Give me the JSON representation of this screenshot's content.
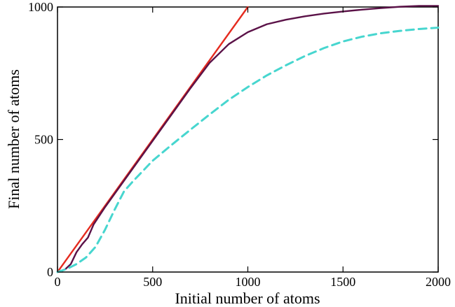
{
  "chart_data": {
    "type": "line",
    "xlabel": "Initial number of atoms",
    "ylabel": "Final number of atoms",
    "xlim": [
      0,
      2000
    ],
    "ylim": [
      0,
      1000
    ],
    "x_ticks": [
      0,
      500,
      1000,
      1500,
      2000
    ],
    "y_ticks": [
      0,
      500,
      1000
    ],
    "x_tick_labels": [
      "0",
      "500",
      "1000",
      "1500",
      "2000"
    ],
    "y_tick_labels": [
      "0",
      "500",
      "1000"
    ],
    "grid": false,
    "series": [
      {
        "color": "#e52b1f",
        "style": "solid",
        "x": [
          0,
          1000
        ],
        "y": [
          0,
          1000
        ]
      },
      {
        "color": "#5b1248",
        "style": "solid",
        "x": [
          0,
          40,
          70,
          100,
          130,
          160,
          190,
          250,
          300,
          400,
          500,
          600,
          700,
          800,
          900,
          1000,
          1100,
          1200,
          1300,
          1400,
          1500,
          1600,
          1700,
          1800,
          1900,
          2000
        ],
        "y": [
          0,
          10,
          30,
          75,
          105,
          130,
          180,
          245,
          295,
          395,
          495,
          595,
          695,
          790,
          860,
          905,
          935,
          952,
          965,
          975,
          983,
          990,
          996,
          1001,
          1004,
          1004
        ]
      },
      {
        "color": "#47d6cf",
        "style": "dashed",
        "x": [
          0,
          50,
          100,
          150,
          200,
          250,
          300,
          350,
          400,
          500,
          600,
          700,
          800,
          900,
          1000,
          1100,
          1200,
          1300,
          1400,
          1500,
          1600,
          1700,
          1800,
          1900,
          2000
        ],
        "y": [
          0,
          12,
          30,
          55,
          95,
          160,
          235,
          305,
          345,
          420,
          480,
          538,
          595,
          650,
          698,
          742,
          780,
          815,
          845,
          870,
          888,
          901,
          910,
          917,
          922
        ]
      }
    ]
  }
}
